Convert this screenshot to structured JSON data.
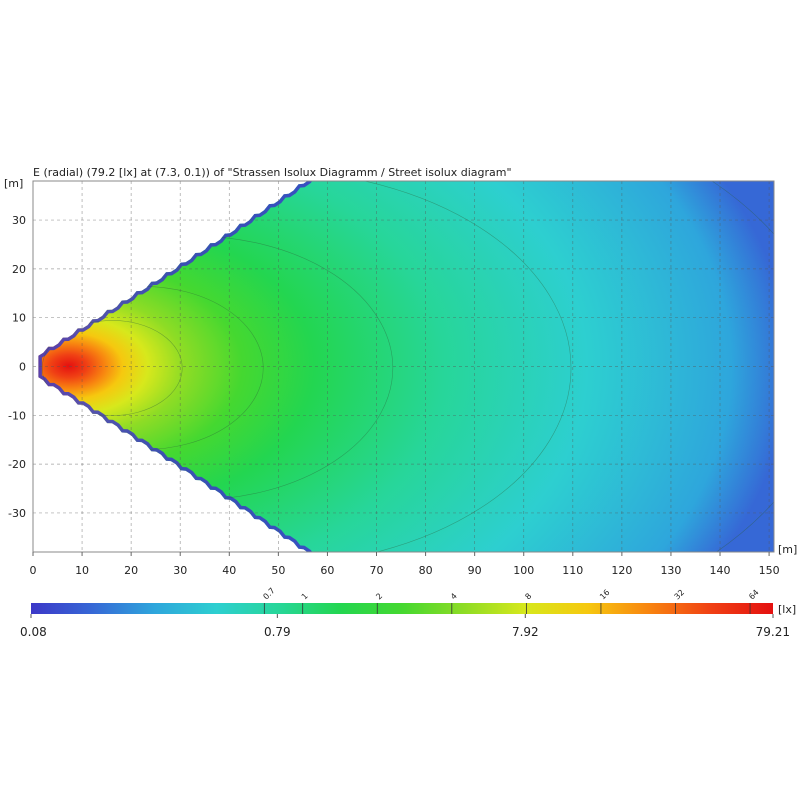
{
  "chart_data": {
    "type": "heatmap",
    "title": "E (radial) (79.2 [lx] at (7.3, 0.1)) of \"Strassen Isolux Diagramm / Street isolux diagram\"",
    "x_unit": "[m]",
    "y_unit": "[m]",
    "xlim": [
      0,
      151
    ],
    "ylim": [
      -38,
      38
    ],
    "x_ticks": [
      0,
      10,
      20,
      30,
      40,
      50,
      60,
      70,
      80,
      90,
      100,
      110,
      120,
      130,
      140,
      150
    ],
    "y_ticks": [
      30,
      20,
      10,
      0,
      -10,
      -20,
      -30
    ],
    "grid": true,
    "peak": {
      "value": 79.2,
      "x": 7.3,
      "y": 0.1,
      "unit": "lx"
    },
    "colorbar": {
      "unit": "[lx]",
      "scale": "log",
      "min": 0.08,
      "max": 79.21,
      "labels": [
        "0.08",
        "0.79",
        "7.92",
        "79.21"
      ],
      "label_values": [
        0.08,
        0.79,
        7.92,
        79.21
      ],
      "contour_levels": [
        "0.7",
        "1",
        "2",
        "4",
        "8",
        "16",
        "32",
        "64"
      ],
      "contour_values": [
        0.7,
        1,
        2,
        4,
        8,
        16,
        32,
        64
      ],
      "colors": [
        "#3c38c8",
        "#3668d6",
        "#2ea6dc",
        "#2dcfd0",
        "#27d699",
        "#23d650",
        "#45d830",
        "#8edc25",
        "#d7e81c",
        "#f6c80f",
        "#f88410",
        "#f04014",
        "#e41010"
      ]
    }
  }
}
